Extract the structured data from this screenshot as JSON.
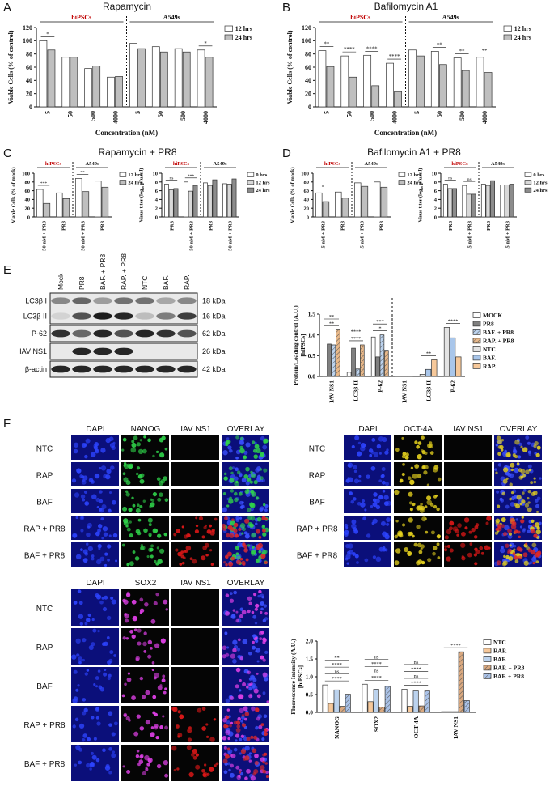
{
  "chart_data": [
    {
      "type": "bar",
      "panel": "A",
      "title": "Rapamycin",
      "ylabel": "Viable Cells (% of control)",
      "xlabel": "Concentration (nM)",
      "legend": "right",
      "categories": [
        "5",
        "50",
        "500",
        "4000",
        "5",
        "50",
        "500",
        "4000"
      ],
      "groups": [
        {
          "label": "hiPSCs",
          "color": "#c00000"
        },
        {
          "label": "A549s",
          "color": "#111111"
        }
      ],
      "series": [
        {
          "name": "12 hrs",
          "color": "#ffffff",
          "values": [
            100,
            75,
            58,
            45,
            96,
            91,
            88,
            86
          ]
        },
        {
          "name": "24 hrs",
          "color": "#bfbfbf",
          "values": [
            86,
            75,
            62,
            46,
            88,
            83,
            83,
            75
          ]
        }
      ],
      "ylim": [
        0,
        120
      ],
      "yticks": [
        0,
        20,
        40,
        60,
        80,
        100,
        120
      ],
      "annotations": [
        {
          "text": "*",
          "category": 0
        },
        {
          "text": "*",
          "category": 7
        }
      ]
    },
    {
      "type": "bar",
      "panel": "B",
      "title": "Bafilomycin A1",
      "ylabel": "Viable Cells (% of control)",
      "xlabel": "Concentration (nM)",
      "legend": "right",
      "categories": [
        "5",
        "50",
        "500",
        "4000",
        "5",
        "50",
        "500",
        "4000"
      ],
      "groups": [
        {
          "label": "hiPSCs",
          "color": "#c00000"
        },
        {
          "label": "A549s",
          "color": "#111111"
        }
      ],
      "series": [
        {
          "name": "12 hrs",
          "color": "#ffffff",
          "values": [
            85,
            77,
            78,
            66,
            86,
            84,
            74,
            75
          ]
        },
        {
          "name": "24 hrs",
          "color": "#bfbfbf",
          "values": [
            61,
            45,
            32,
            23,
            77,
            64,
            55,
            52
          ]
        }
      ],
      "ylim": [
        0,
        120
      ],
      "yticks": [
        0,
        20,
        40,
        60,
        80,
        100,
        120
      ],
      "annotations": [
        {
          "text": "**",
          "category": 0
        },
        {
          "text": "****",
          "category": 1
        },
        {
          "text": "****",
          "category": 2
        },
        {
          "text": "****",
          "category": 3
        },
        {
          "text": "**",
          "category": 5
        },
        {
          "text": "**",
          "category": 6
        },
        {
          "text": "**",
          "category": 7
        }
      ]
    },
    {
      "type": "bar",
      "panel": "C",
      "title": "Rapamycin + PR8",
      "ylabel": "Viable Cells (% of mock)",
      "legend": "right",
      "categories": [
        "50 nM + PR8",
        "PR8",
        "50 nM + PR8",
        "PR8"
      ],
      "groups": [
        {
          "label": "hiPSCs",
          "color": "#c00000"
        },
        {
          "label": "A549s",
          "color": "#111111"
        }
      ],
      "series": [
        {
          "name": "12 hrs",
          "color": "#ffffff",
          "values": [
            63,
            55,
            88,
            82
          ]
        },
        {
          "name": "24 hrs",
          "color": "#bfbfbf",
          "values": [
            31,
            42,
            58,
            68
          ]
        }
      ],
      "ylim": [
        0,
        100
      ],
      "yticks": [
        0,
        20,
        40,
        60,
        80,
        100
      ],
      "annotations": [
        {
          "text": "***",
          "category": 0
        },
        {
          "text": "**",
          "category": 2
        }
      ]
    },
    {
      "type": "bar",
      "ylabel": "Virus titer (log₁₀ pfu/ml)",
      "legend": "right",
      "categories": [
        "PR8",
        "50 nM + PR8",
        "PR8",
        "50 nM + PR8"
      ],
      "groups": [
        {
          "label": "hiPSCs",
          "color": "#c00000"
        },
        {
          "label": "A549s",
          "color": "#111111"
        }
      ],
      "series": [
        {
          "name": "0 hrs",
          "color": "#ffffff",
          "values": [
            7.5,
            8,
            7.8,
            7.6
          ]
        },
        {
          "name": "12 hrs",
          "color": "#d9d9d9",
          "values": [
            6.2,
            5.9,
            7.2,
            7.5
          ]
        },
        {
          "name": "24 hrs",
          "color": "#8c8c8c",
          "values": [
            6.5,
            7.2,
            8.5,
            8.7
          ]
        }
      ],
      "ylim": [
        0,
        10
      ],
      "yticks": [
        0,
        2,
        4,
        6,
        8,
        10
      ],
      "annotations": [
        {
          "text": "ns",
          "category": 0
        },
        {
          "text": "***",
          "category": 1
        }
      ]
    },
    {
      "type": "bar",
      "panel": "D",
      "title": "Bafilomycin A1 + PR8",
      "ylabel": "Viable Cells (% of mock)",
      "legend": "right",
      "categories": [
        "5 nM + PR8",
        "PR8",
        "5 nM + PR8",
        "PR8"
      ],
      "groups": [
        {
          "label": "hiPSCs",
          "color": "#c00000"
        },
        {
          "label": "A549s",
          "color": "#111111"
        }
      ],
      "series": [
        {
          "name": "12 hrs",
          "color": "#ffffff",
          "values": [
            55,
            57,
            78,
            80
          ]
        },
        {
          "name": "24 hrs",
          "color": "#bfbfbf",
          "values": [
            35,
            43,
            70,
            68
          ]
        }
      ],
      "ylim": [
        0,
        100
      ],
      "yticks": [
        0,
        20,
        40,
        60,
        80,
        100
      ],
      "annotations": [
        {
          "text": "*",
          "category": 0
        }
      ]
    },
    {
      "type": "bar",
      "ylabel": "Virus titer (log₁₀ pfu/ml)",
      "legend": "right",
      "categories": [
        "PR8",
        "5 nM + PR8",
        "PR8",
        "5 nM + PR8"
      ],
      "groups": [
        {
          "label": "hiPSCs",
          "color": "#c00000"
        },
        {
          "label": "A549s",
          "color": "#111111"
        }
      ],
      "series": [
        {
          "name": "0 hrs",
          "color": "#ffffff",
          "values": [
            7.5,
            7.2,
            7.5,
            7.3
          ]
        },
        {
          "name": "12 hrs",
          "color": "#d9d9d9",
          "values": [
            6.5,
            5.2,
            7.2,
            7.3
          ]
        },
        {
          "name": "24 hrs",
          "color": "#8c8c8c",
          "values": [
            6.5,
            5.2,
            8.3,
            7.5
          ]
        }
      ],
      "ylim": [
        0,
        10
      ],
      "yticks": [
        0,
        2,
        4,
        6,
        8,
        10
      ],
      "annotations": [
        {
          "text": "ns",
          "category": 0
        },
        {
          "text": "ns",
          "category": 1
        }
      ]
    },
    {
      "type": "bar",
      "ylabel": "Protein/Loading control (A.U.)",
      "ylabel_note": "[hiPSCs]",
      "legend": "right",
      "divider": true,
      "categories": [
        "IAV NS1",
        "LC3β II",
        "P-62",
        "IAV NS1",
        "LC3β II",
        "P-62"
      ],
      "series": [
        {
          "name": "MOCK",
          "color": "#ffffff",
          "values": [
            0.01,
            0.1,
            0.95,
            null,
            null,
            null
          ]
        },
        {
          "name": "PR8",
          "color": "#808080",
          "values": [
            0.78,
            0.68,
            0.47,
            null,
            null,
            null
          ]
        },
        {
          "name": "BAF. + PR8",
          "color": "#bcd3ee",
          "hatch": true,
          "values": [
            0.76,
            0.18,
            1.0,
            null,
            null,
            null
          ]
        },
        {
          "name": "RAP. + PR8",
          "color": "#e9b98a",
          "hatch": true,
          "values": [
            1.12,
            0.76,
            0.63,
            null,
            null,
            null
          ]
        },
        {
          "name": "NTC",
          "color": "#e3e3e3",
          "values": [
            null,
            null,
            null,
            0.01,
            0.05,
            1.18
          ]
        },
        {
          "name": "BAF.",
          "color": "#a9c6ea",
          "values": [
            null,
            null,
            null,
            0.01,
            0.17,
            0.93
          ]
        },
        {
          "name": "RAP.",
          "color": "#f6c89a",
          "values": [
            null,
            null,
            null,
            0.01,
            0.4,
            0.47
          ]
        }
      ],
      "ylim": [
        0,
        1.5
      ],
      "yticks": [
        {
          "value": 0,
          "label": "0.0"
        },
        {
          "value": 0.5,
          "label": "0.5"
        },
        {
          "value": 1,
          "label": "1.0"
        },
        {
          "value": 1.5,
          "label": "1.5"
        }
      ],
      "annotations": [
        {
          "text": "**",
          "category": 0
        },
        {
          "text": "**",
          "category": 0
        },
        {
          "text": "****",
          "category": 1
        },
        {
          "text": "****",
          "category": 1
        },
        {
          "text": "*",
          "category": 2
        },
        {
          "text": "***",
          "category": 2
        },
        {
          "text": "**",
          "category": 4
        },
        {
          "text": "****",
          "category": 5
        }
      ]
    },
    {
      "type": "bar",
      "ylabel": "Fluorescence Intensity (A.U.)",
      "ylabel_note": "[hiPSCs]",
      "legend": "right",
      "categories": [
        "NANOG",
        "SOX2",
        "OCT-4A",
        "IAV NS1"
      ],
      "series": [
        {
          "name": "NTC",
          "color": "#ffffff",
          "values": [
            0.77,
            0.79,
            0.65,
            0.02
          ]
        },
        {
          "name": "RAP.",
          "color": "#f6c89a",
          "values": [
            0.25,
            0.3,
            0.17,
            0.02
          ]
        },
        {
          "name": "BAF.",
          "color": "#bcd3ee",
          "values": [
            0.63,
            0.65,
            0.6,
            0.02
          ]
        },
        {
          "name": "RAP. + PR8",
          "color": "#d9a87f",
          "hatch": true,
          "values": [
            0.17,
            0.15,
            0.18,
            1.7
          ]
        },
        {
          "name": "BAF. + PR8",
          "color": "#a9c1e6",
          "hatch": true,
          "values": [
            0.51,
            0.73,
            0.6,
            0.33
          ]
        }
      ],
      "ylim": [
        0,
        2
      ],
      "yticks": [
        {
          "value": 0,
          "label": "0.0"
        },
        {
          "value": 0.5,
          "label": "0.5"
        },
        {
          "value": 1,
          "label": "1.0"
        },
        {
          "value": 1.5,
          "label": "1.5"
        },
        {
          "value": 2,
          "label": "2.0"
        }
      ],
      "annotations": [
        {
          "text": "****",
          "category": 0
        },
        {
          "text": "ns",
          "category": 0
        },
        {
          "text": "****",
          "category": 0
        },
        {
          "text": "**",
          "category": 0
        },
        {
          "text": "****",
          "category": 1
        },
        {
          "text": "ns",
          "category": 1
        },
        {
          "text": "****",
          "category": 1
        },
        {
          "text": "ns",
          "category": 1
        },
        {
          "text": "****",
          "category": 2
        },
        {
          "text": "ns",
          "category": 2
        },
        {
          "text": "****",
          "category": 2
        },
        {
          "text": "ns",
          "category": 2
        },
        {
          "text": "****",
          "category": 3
        }
      ]
    }
  ],
  "blot": {
    "panel": "E",
    "lanes": [
      "Mock",
      "PR8",
      "BAF. + PR8",
      "RAP. + PR8",
      "NTC",
      "BAF.",
      "RAP."
    ],
    "rows": [
      {
        "labels": [
          "LC3β I",
          "LC3β II"
        ],
        "sizes": [
          "18 kDa",
          "16 kDa"
        ]
      },
      {
        "labels": [
          "P-62"
        ],
        "sizes": [
          "62 kDa"
        ]
      },
      {
        "labels": [
          "IAV NS1"
        ],
        "sizes": [
          "26 kDa"
        ]
      },
      {
        "labels": [
          "β-actin"
        ],
        "sizes": [
          "42 kDa"
        ]
      }
    ]
  },
  "microscopy": {
    "panel": "F",
    "grids": [
      {
        "columns": [
          "DAPI",
          "NANOG",
          "IAV NS1",
          "OVERLAY"
        ],
        "marker_color": "#2fd34a",
        "rows": [
          {
            "label": "NTC",
            "infected": false
          },
          {
            "label": "RAP",
            "infected": false
          },
          {
            "label": "BAF",
            "infected": false
          },
          {
            "label": "RAP + PR8",
            "infected": true
          },
          {
            "label": "BAF + PR8",
            "infected": true
          }
        ]
      },
      {
        "columns": [
          "DAPI",
          "OCT-4A",
          "IAV NS1",
          "OVERLAY"
        ],
        "marker_color": "#e6d21e",
        "rows": [
          {
            "label": "NTC",
            "infected": false
          },
          {
            "label": "RAP",
            "infected": false
          },
          {
            "label": "BAF",
            "infected": false
          },
          {
            "label": "RAP + PR8",
            "infected": true
          },
          {
            "label": "BAF + PR8",
            "infected": true
          }
        ]
      },
      {
        "columns": [
          "DAPI",
          "SOX2",
          "IAV NS1",
          "OVERLAY"
        ],
        "marker_color": "#e040e8",
        "rows": [
          {
            "label": "NTC",
            "infected": false
          },
          {
            "label": "RAP",
            "infected": false
          },
          {
            "label": "BAF",
            "infected": false
          },
          {
            "label": "RAP + PR8",
            "infected": true
          },
          {
            "label": "BAF + PR8",
            "infected": true
          }
        ]
      }
    ]
  }
}
